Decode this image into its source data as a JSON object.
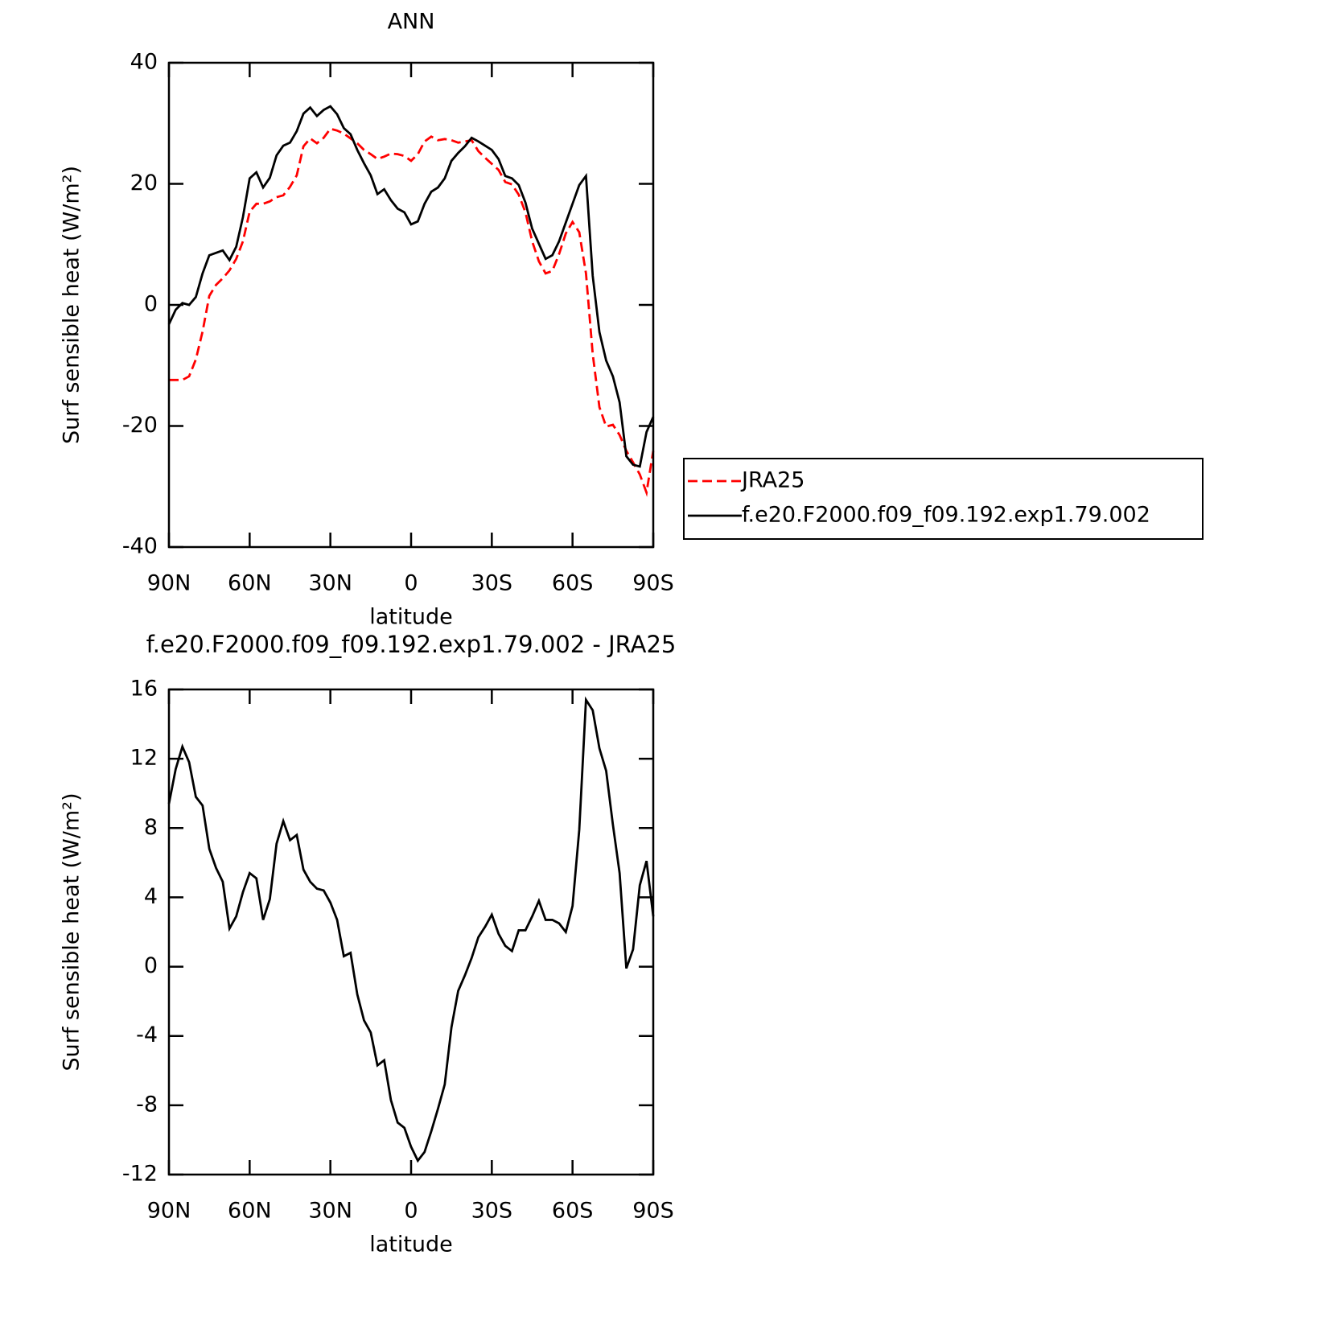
{
  "chart_data": [
    {
      "type": "line",
      "title": "ANN",
      "x_label": "latitude",
      "y_label": "Surf sensible heat (W/m²)",
      "x": [
        90,
        87.5,
        85,
        82.5,
        80,
        77.5,
        75,
        72.5,
        70,
        67.5,
        65,
        62.5,
        60,
        57.5,
        55,
        52.5,
        50,
        47.5,
        45,
        42.5,
        40,
        37.5,
        35,
        32.5,
        30,
        27.5,
        25,
        22.5,
        20,
        17.5,
        15,
        12.5,
        10,
        7.5,
        5,
        2.5,
        0,
        -2.5,
        -5,
        -7.5,
        -10,
        -12.5,
        -15,
        -17.5,
        -20,
        -22.5,
        -25,
        -27.5,
        -30,
        -32.5,
        -35,
        -37.5,
        -40,
        -42.5,
        -45,
        -47.5,
        -50,
        -52.5,
        -55,
        -57.5,
        -60,
        -62.5,
        -65,
        -67.5,
        -70,
        -72.5,
        -75,
        -77.5,
        -80,
        -82.5,
        -85,
        -87.5,
        -90
      ],
      "xlim": [
        90,
        -90
      ],
      "xticks": [
        {
          "value": 90,
          "label": "90N"
        },
        {
          "value": 60,
          "label": "60N"
        },
        {
          "value": 30,
          "label": "30N"
        },
        0,
        {
          "value": -30,
          "label": "30S"
        },
        {
          "value": -60,
          "label": "60S"
        },
        {
          "value": -90,
          "label": "90S"
        }
      ],
      "ylim": [
        -40,
        40
      ],
      "yticks": [
        -40,
        -20,
        0,
        20,
        40
      ],
      "legend": "right",
      "series": [
        {
          "name": "JRA25",
          "color": "#ff0000",
          "style": "dashed",
          "values": [
            -12.4,
            -12.4,
            -12.4,
            -11.8,
            -9.0,
            -4.4,
            1.5,
            3.3,
            4.4,
            5.7,
            7.6,
            10.5,
            15.4,
            16.7,
            16.7,
            17.1,
            17.8,
            18.1,
            19.5,
            21.4,
            26.2,
            27.5,
            26.7,
            27.6,
            29.1,
            28.8,
            28.3,
            27.5,
            26.7,
            25.6,
            24.9,
            24.1,
            24.5,
            25.0,
            24.9,
            24.6,
            23.8,
            24.9,
            27.0,
            27.8,
            27.2,
            27.4,
            27.2,
            26.8,
            27.0,
            27.2,
            25.4,
            24.3,
            23.3,
            22.3,
            20.3,
            19.9,
            18.2,
            15.3,
            10.5,
            7.2,
            5.2,
            5.6,
            8.4,
            11.8,
            13.7,
            12.0,
            5.2,
            -8.1,
            -16.9,
            -20.1,
            -19.8,
            -21.5,
            -24.1,
            -26.0,
            -28.0,
            -31.0,
            -24.1
          ]
        },
        {
          "name": "f.e20.F2000.f09_f09.192.exp1.79.002",
          "color": "#000000",
          "style": "solid",
          "values": [
            -3.2,
            -0.8,
            0.3,
            0,
            1.3,
            5.2,
            8.2,
            8.6,
            9.0,
            7.4,
            9.6,
            14.5,
            20.9,
            21.9,
            19.4,
            21.0,
            24.7,
            26.3,
            26.8,
            28.7,
            31.6,
            32.6,
            31.2,
            32.2,
            32.8,
            31.5,
            29.2,
            28.2,
            25.6,
            23.4,
            21.4,
            18.3,
            19.1,
            17.3,
            15.9,
            15.3,
            13.3,
            13.8,
            16.7,
            18.7,
            19.4,
            20.9,
            23.8,
            25.1,
            26.2,
            27.6,
            27.0,
            26.3,
            25.6,
            24.1,
            21.3,
            20.9,
            19.8,
            16.9,
            12.6,
            10.1,
            7.6,
            8.2,
            10.5,
            13.6,
            16.7,
            19.8,
            21.3,
            4.8,
            -4.5,
            -9.2,
            -11.8,
            -16.1,
            -25.0,
            -26.4,
            -26.7,
            -21.0,
            -18.5
          ]
        }
      ]
    },
    {
      "type": "line",
      "title": "f.e20.F2000.f09_f09.192.exp1.79.002 - JRA25",
      "x_label": "latitude",
      "y_label": "Surf sensible heat (W/m²)",
      "x": [
        90,
        87.5,
        85,
        82.5,
        80,
        77.5,
        75,
        72.5,
        70,
        67.5,
        65,
        62.5,
        60,
        57.5,
        55,
        52.5,
        50,
        47.5,
        45,
        42.5,
        40,
        37.5,
        35,
        32.5,
        30,
        27.5,
        25,
        22.5,
        20,
        17.5,
        15,
        12.5,
        10,
        7.5,
        5,
        2.5,
        0,
        -2.5,
        -5,
        -7.5,
        -10,
        -12.5,
        -15,
        -17.5,
        -20,
        -22.5,
        -25,
        -27.5,
        -30,
        -32.5,
        -35,
        -37.5,
        -40,
        -42.5,
        -45,
        -47.5,
        -50,
        -52.5,
        -55,
        -57.5,
        -60,
        -62.5,
        -65,
        -67.5,
        -70,
        -72.5,
        -75,
        -77.5,
        -80,
        -82.5,
        -85,
        -87.5,
        -90
      ],
      "xlim": [
        90,
        -90
      ],
      "xticks": [
        {
          "value": 90,
          "label": "90N"
        },
        {
          "value": 60,
          "label": "60N"
        },
        {
          "value": 30,
          "label": "30N"
        },
        0,
        {
          "value": -30,
          "label": "30S"
        },
        {
          "value": -60,
          "label": "60S"
        },
        {
          "value": -90,
          "label": "90S"
        }
      ],
      "ylim": [
        -12,
        16
      ],
      "yticks": [
        -12,
        -8,
        -4,
        0,
        4,
        8,
        12,
        16
      ],
      "series": [
        {
          "color": "#000000",
          "style": "solid",
          "values": [
            9.4,
            11.4,
            12.7,
            11.8,
            9.8,
            9.3,
            6.8,
            5.7,
            4.9,
            2.2,
            2.9,
            4.3,
            5.4,
            5.1,
            2.7,
            3.9,
            7.1,
            8.4,
            7.3,
            7.6,
            5.6,
            4.9,
            4.5,
            4.4,
            3.7,
            2.7,
            0.6,
            0.8,
            -1.6,
            -3.1,
            -3.8,
            -5.7,
            -5.4,
            -7.7,
            -9.0,
            -9.3,
            -10.4,
            -11.2,
            -10.7,
            -9.5,
            -8.2,
            -6.8,
            -3.5,
            -1.4,
            -0.5,
            0.5,
            1.7,
            2.3,
            3.0,
            1.9,
            1.2,
            0.9,
            2.1,
            2.1,
            2.9,
            3.8,
            2.7,
            2.7,
            2.5,
            2.0,
            3.5,
            7.9,
            15.4,
            14.8,
            12.6,
            11.3,
            8.2,
            5.4,
            -0.1,
            1.0,
            4.7,
            6.1,
            2.9
          ]
        }
      ]
    }
  ]
}
